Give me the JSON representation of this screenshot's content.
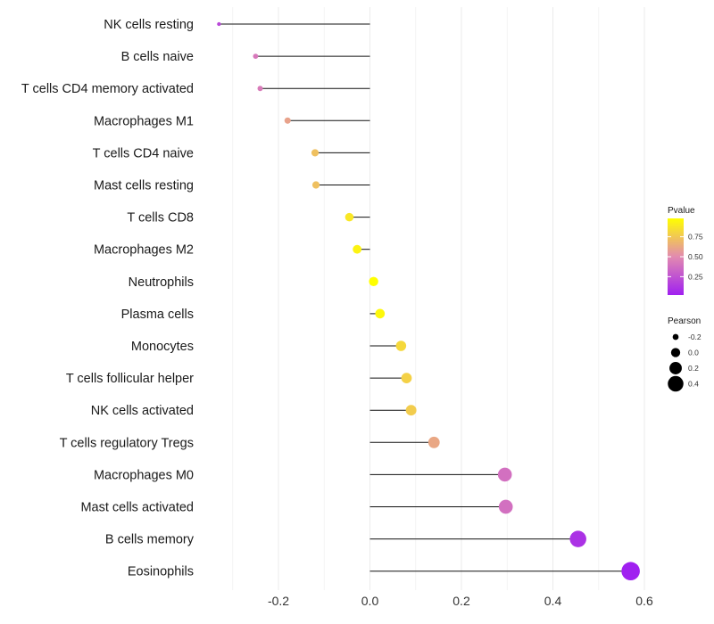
{
  "chart_data": {
    "type": "lollipop",
    "xlim": [
      -0.3,
      0.6
    ],
    "x_ticks": [
      -0.2,
      0.0,
      0.2,
      0.4,
      0.6
    ],
    "x_tick_labels": [
      "-0.2",
      "0.0",
      "0.2",
      "0.4",
      "0.6"
    ],
    "categories": [
      "NK cells resting",
      "B cells naive",
      "T cells CD4 memory activated",
      "Macrophages M1",
      "T cells CD4 naive",
      "Mast cells resting",
      "T cells CD8",
      "Macrophages M2",
      "Neutrophils",
      "Plasma cells",
      "Monocytes",
      "T cells follicular helper",
      "NK cells activated",
      "T cells regulatory  Tregs",
      "Macrophages M0",
      "Mast cells activated",
      "B cells memory",
      "Eosinophils"
    ],
    "pearson": [
      -0.33,
      -0.25,
      -0.24,
      -0.18,
      -0.12,
      -0.118,
      -0.045,
      -0.028,
      0.008,
      0.022,
      0.068,
      0.08,
      0.09,
      0.14,
      0.295,
      0.297,
      0.455,
      0.57
    ],
    "pvalue": [
      0.2,
      0.42,
      0.43,
      0.6,
      0.72,
      0.72,
      0.88,
      0.93,
      0.98,
      0.95,
      0.82,
      0.79,
      0.77,
      0.62,
      0.38,
      0.38,
      0.1,
      0.02
    ],
    "xlabel": "",
    "ylabel": "",
    "legend_color": {
      "title": "Pvalue",
      "ticks": [
        0.25,
        0.5,
        0.75
      ],
      "tick_labels": [
        "0.25",
        "0.50",
        "0.75"
      ],
      "range": [
        0.02,
        0.98
      ],
      "colors": {
        "low": "#a020f0",
        "mid": "#e28ab0",
        "high": "#ffff00"
      }
    },
    "legend_size": {
      "title": "Pearson",
      "values": [
        -0.2,
        0.0,
        0.2,
        0.4
      ],
      "labels": [
        "-0.2",
        "0.0",
        "0.2",
        "0.4"
      ]
    },
    "grid": true
  }
}
